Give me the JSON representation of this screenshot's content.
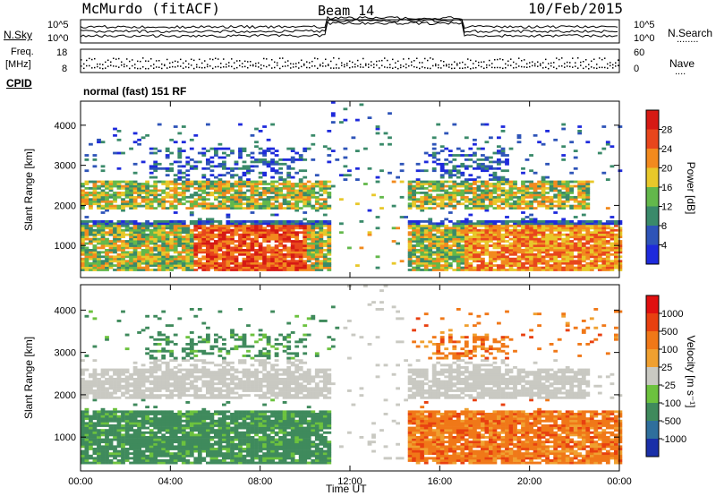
{
  "header": {
    "station": "McMurdo (fitACF)",
    "beam": "Beam 14",
    "date": "10/Feb/2015"
  },
  "panels": {
    "sky": {
      "left_label": "N.Sky",
      "left_ticks": [
        "10^5",
        "10^0"
      ],
      "right_ticks": [
        "10^5",
        "10^0"
      ],
      "right_label": "N.Search",
      "right_label_dots": "........"
    },
    "freq": {
      "left_label_top": "Freq.",
      "left_label_bottom": "[MHz]",
      "left_ticks": [
        "18",
        "8"
      ],
      "right_ticks": [
        "60",
        "0"
      ],
      "right_label": "Nave",
      "right_label_dots": "...."
    },
    "cpid": {
      "label": "CPID",
      "mode": "normal (fast) 151 RF"
    }
  },
  "chart_data": [
    {
      "type": "heatmap",
      "quantity": "power",
      "ylabel": "Slant Range [km]",
      "yticks": [
        1000,
        2000,
        3000,
        4000
      ],
      "ylim": [
        200,
        4600
      ],
      "xlim_hours": [
        0,
        24
      ],
      "colorbar": {
        "label": "Power [dB]",
        "ticks": [
          "4",
          "8",
          "12",
          "16",
          "20",
          "24",
          "28"
        ],
        "colors": [
          "#1e2adc",
          "#2e54b8",
          "#3a8a6a",
          "#63b84b",
          "#e8c82a",
          "#f28a1e",
          "#e8461c",
          "#d61a14"
        ]
      }
    },
    {
      "type": "heatmap",
      "quantity": "velocity",
      "ylabel": "Slant Range [km]",
      "yticks": [
        1000,
        2000,
        3000,
        4000
      ],
      "ylim": [
        200,
        4600
      ],
      "xlim_hours": [
        0,
        24
      ],
      "xlabel": "Time UT",
      "xticks": [
        "00:00",
        "04:00",
        "08:00",
        "12:00",
        "16:00",
        "20:00",
        "00:00"
      ],
      "colorbar": {
        "label": "Velocity [m s⁻¹]",
        "ticks": [
          "1000",
          "500",
          "100",
          "25",
          "-25",
          "-100",
          "-500",
          "-1000"
        ],
        "colors": [
          "#1a2fa8",
          "#2f6f9c",
          "#3f8a5c",
          "#6cc23e",
          "#c9c9c2",
          "#f0a030",
          "#f07818",
          "#e84010",
          "#e01010"
        ]
      }
    }
  ]
}
